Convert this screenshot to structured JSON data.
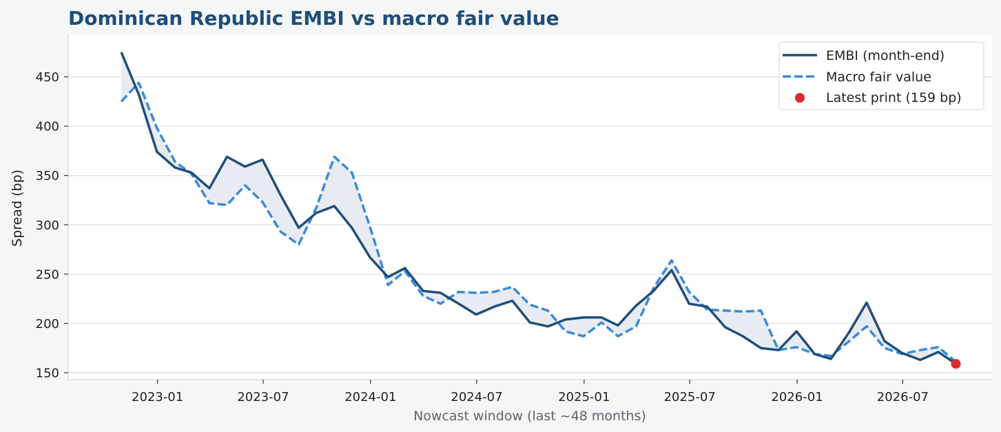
{
  "chart_data": {
    "type": "line",
    "title": "Dominican Republic EMBI vs macro fair value",
    "xlabel": "Nowcast window (last ~48 months)",
    "ylabel": "Spread (bp)",
    "x_start": "2022-10",
    "x_end": "2026-09",
    "xlim": [
      "2022-08-01",
      "2026-12-01"
    ],
    "ylim": [
      143,
      493
    ],
    "yticks": [
      150,
      200,
      250,
      300,
      350,
      400,
      450
    ],
    "xticks": [
      {
        "date": "2023-01",
        "label": "2023-01"
      },
      {
        "date": "2023-07",
        "label": "2023-07"
      },
      {
        "date": "2024-01",
        "label": "2024-01"
      },
      {
        "date": "2024-07",
        "label": "2024-07"
      },
      {
        "date": "2025-01",
        "label": "2025-01"
      },
      {
        "date": "2025-07",
        "label": "2025-07"
      },
      {
        "date": "2026-01",
        "label": "2026-01"
      },
      {
        "date": "2026-07",
        "label": "2026-07"
      }
    ],
    "grid": "horizontal",
    "legend_position": "top-right",
    "series": [
      {
        "name": "EMBI (month-end)",
        "style": "solid",
        "color": "#1f4e79",
        "values": [
          475,
          432,
          374,
          358,
          353,
          337,
          369,
          359,
          366,
          330,
          297,
          312,
          319,
          297,
          267,
          247,
          256,
          233,
          231,
          220,
          209,
          217,
          223,
          201,
          197,
          204,
          206,
          206,
          198,
          218,
          233,
          254,
          220,
          217,
          196,
          187,
          175,
          173,
          192,
          169,
          164,
          191,
          221,
          182,
          170,
          163,
          171,
          159
        ]
      },
      {
        "name": "Macro fair value",
        "style": "dashed",
        "color": "#3a8ad8",
        "values": [
          425,
          444,
          398,
          364,
          352,
          322,
          320,
          340,
          323,
          293,
          280,
          317,
          369,
          353,
          298,
          239,
          253,
          228,
          220,
          232,
          231,
          232,
          237,
          219,
          213,
          192,
          187,
          201,
          187,
          197,
          236,
          264,
          232,
          214,
          213,
          212,
          213,
          173,
          176,
          169,
          167,
          182,
          197,
          175,
          169,
          173,
          176,
          161
        ]
      }
    ],
    "latest_point": {
      "label": "Latest print (159 bp)",
      "date": "2026-09",
      "value": 159,
      "color": "#dd2a2a"
    },
    "fill_between_color": "#e8ecf2"
  },
  "colors": {
    "title": "#1f4e79",
    "axis_label": "#222222",
    "xlabel": "#5a6470",
    "grid": "#e3e6ea",
    "spine": "#d8dde2",
    "plot_bg": "#ffffff",
    "page_bg": "#f4f6f8"
  }
}
